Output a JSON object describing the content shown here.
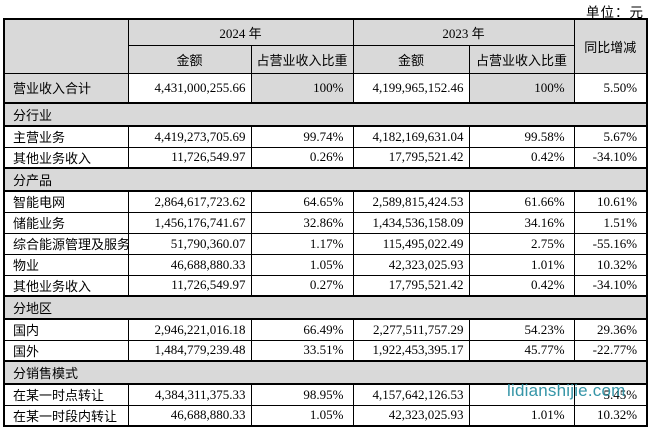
{
  "page": {
    "unit_label": "单位：元"
  },
  "colors": {
    "shading": "#d9d9d9",
    "watermark": "#2b90a3",
    "border": "#000000"
  },
  "watermark": {
    "text": "lidianshijie.com"
  },
  "table": {
    "header": {
      "corner": "",
      "year_2024": "2024 年",
      "year_2023": "2023 年",
      "yoy": "同比增减",
      "amount_2024": "金额",
      "ratio_2024": "占营业收入比重",
      "amount_2023": "金额",
      "ratio_2023": "占营业收入比重"
    },
    "rows": [
      {
        "type": "data",
        "highlight": true,
        "label": "营业收入合计",
        "amount_2024": "4,431,000,255.66",
        "ratio_2024": "100%",
        "amount_2023": "4,199,965,152.46",
        "ratio_2023": "100%",
        "yoy": "5.50%"
      },
      {
        "type": "section",
        "label": "分行业"
      },
      {
        "type": "data",
        "label": "主营业务",
        "amount_2024": "4,419,273,705.69",
        "ratio_2024": "99.74%",
        "amount_2023": "4,182,169,631.04",
        "ratio_2023": "99.58%",
        "yoy": "5.67%"
      },
      {
        "type": "data",
        "label": "其他业务收入",
        "amount_2024": "11,726,549.97",
        "ratio_2024": "0.26%",
        "amount_2023": "17,795,521.42",
        "ratio_2023": "0.42%",
        "yoy": "-34.10%"
      },
      {
        "type": "section",
        "label": "分产品"
      },
      {
        "type": "data",
        "label": "智能电网",
        "amount_2024": "2,864,617,723.62",
        "ratio_2024": "64.65%",
        "amount_2023": "2,589,815,424.53",
        "ratio_2023": "61.66%",
        "yoy": "10.61%"
      },
      {
        "type": "data",
        "label": "储能业务",
        "amount_2024": "1,456,176,741.67",
        "ratio_2024": "32.86%",
        "amount_2023": "1,434,536,158.09",
        "ratio_2023": "34.16%",
        "yoy": "1.51%"
      },
      {
        "type": "data",
        "label": "综合能源管理及服务",
        "amount_2024": "51,790,360.07",
        "ratio_2024": "1.17%",
        "amount_2023": "115,495,022.49",
        "ratio_2023": "2.75%",
        "yoy": "-55.16%"
      },
      {
        "type": "data",
        "label": "物业",
        "amount_2024": "46,688,880.33",
        "ratio_2024": "1.05%",
        "amount_2023": "42,323,025.93",
        "ratio_2023": "1.01%",
        "yoy": "10.32%"
      },
      {
        "type": "data",
        "label": "其他业务收入",
        "amount_2024": "11,726,549.97",
        "ratio_2024": "0.27%",
        "amount_2023": "17,795,521.42",
        "ratio_2023": "0.42%",
        "yoy": "-34.10%"
      },
      {
        "type": "section",
        "label": "分地区"
      },
      {
        "type": "data",
        "label": "国内",
        "amount_2024": "2,946,221,016.18",
        "ratio_2024": "66.49%",
        "amount_2023": "2,277,511,757.29",
        "ratio_2023": "54.23%",
        "yoy": "29.36%"
      },
      {
        "type": "data",
        "label": "国外",
        "amount_2024": "1,484,779,239.48",
        "ratio_2024": "33.51%",
        "amount_2023": "1,922,453,395.17",
        "ratio_2023": "45.77%",
        "yoy": "-22.77%"
      },
      {
        "type": "section",
        "label": "分销售模式"
      },
      {
        "type": "data",
        "label": "在某一时点转让",
        "amount_2024": "4,384,311,375.33",
        "ratio_2024": "98.95%",
        "amount_2023": "4,157,642,126.53",
        "ratio_2023": "",
        "yoy": "5.45%"
      },
      {
        "type": "data",
        "label": "在某一时段内转让",
        "amount_2024": "46,688,880.33",
        "ratio_2024": "1.05%",
        "amount_2023": "42,323,025.93",
        "ratio_2023": "1.01%",
        "yoy": "10.32%"
      }
    ]
  }
}
